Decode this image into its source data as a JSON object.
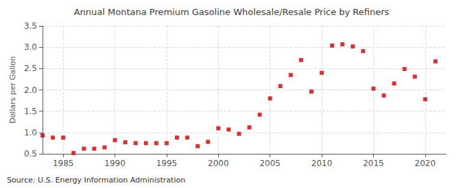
{
  "chart_data": {
    "type": "scatter",
    "title": "Annual Montana Premium Gasoline Wholesale/Resale Price by Refiners",
    "ylabel": "Dollars per Gallon",
    "annotations": [
      "Source: U.S. Energy Information Administration"
    ],
    "x": [
      1983,
      1984,
      1985,
      1986,
      1987,
      1988,
      1989,
      1990,
      1991,
      1992,
      1993,
      1994,
      1995,
      1996,
      1997,
      1998,
      1999,
      2000,
      2001,
      2002,
      2003,
      2004,
      2005,
      2006,
      2007,
      2008,
      2009,
      2010,
      2011,
      2012,
      2013,
      2014,
      2015,
      2016,
      2017,
      2018,
      2019,
      2020,
      2021
    ],
    "values": [
      0.93,
      0.88,
      0.88,
      0.52,
      0.62,
      0.62,
      0.65,
      0.82,
      0.77,
      0.75,
      0.75,
      0.75,
      0.75,
      0.88,
      0.88,
      0.68,
      0.78,
      1.1,
      1.07,
      0.97,
      1.12,
      1.42,
      1.8,
      2.09,
      2.35,
      2.7,
      1.96,
      2.4,
      3.04,
      3.07,
      3.02,
      2.91,
      2.03,
      1.87,
      2.15,
      2.49,
      2.31,
      1.78,
      2.67
    ],
    "color": "#cc0000",
    "marker": "square",
    "xlim": [
      1983,
      2022
    ],
    "ylim": [
      0.5,
      3.5
    ],
    "xticks": [
      1985,
      1990,
      1995,
      2000,
      2005,
      2010,
      2015,
      2020
    ],
    "yticks": [
      0.5,
      {
        "value": 1.0,
        "label": "1.0"
      },
      1.5,
      {
        "value": 2.0,
        "label": "2.0"
      },
      2.5,
      {
        "value": 3.0,
        "label": "3.0"
      },
      3.5
    ],
    "grid": true
  }
}
